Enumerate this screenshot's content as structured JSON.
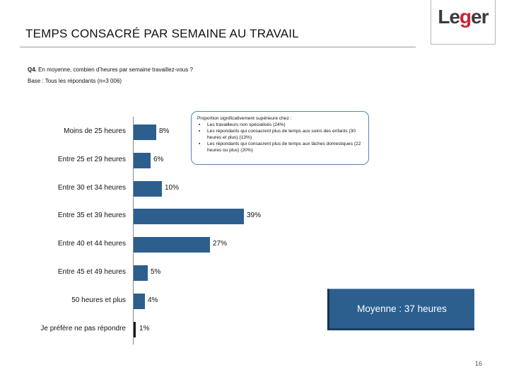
{
  "header": {
    "title": "TEMPS CONSACRÉ PAR SEMAINE AU TRAVAIL",
    "logo_prefix": "Le",
    "logo_accent": "g",
    "logo_suffix": "er"
  },
  "question": {
    "number": "Q4.",
    "text": "En moyenne, combien d’heures par semaine travaillez-vous ?",
    "base": "Base : Tous les répondants (n=3 006)"
  },
  "chart_data": {
    "type": "bar",
    "orientation": "horizontal",
    "categories": [
      "Moins de 25 heures",
      "Entre 25 et 29 heures",
      "Entre 30 et 34 heures",
      "Entre 35 et 39 heures",
      "Entre 40 et 44 heures",
      "Entre 45 et 49 heures",
      "50 heures et plus",
      "Je préfère ne pas répondre"
    ],
    "values": [
      8,
      6,
      10,
      39,
      27,
      5,
      4,
      1
    ],
    "labels": [
      "8%",
      "6%",
      "10%",
      "39%",
      "27%",
      "5%",
      "4%",
      "1%"
    ],
    "unit": "%",
    "xlim": [
      0,
      45
    ],
    "color": "#2c5f8e",
    "title": "",
    "xlabel": "",
    "ylabel": ""
  },
  "callout": {
    "heading": "Proportion significativement supérieure chez :",
    "items": [
      "Les travailleurs non spécialisés (24%)",
      "Les répondants qui consacrent plus de temps aux soins des enfants (30 heures et plus) (13%)",
      "Les répondants qui consacrent plus de temps aux tâches domestiques (22 heures ou plus) (20%)"
    ]
  },
  "average_box": {
    "label": "Moyenne : 37 heures"
  },
  "footer": {
    "page_number": "16"
  },
  "colors": {
    "bar": "#2c5f8e",
    "accent": "#d01f2e",
    "callout_border": "#5a84b0"
  }
}
